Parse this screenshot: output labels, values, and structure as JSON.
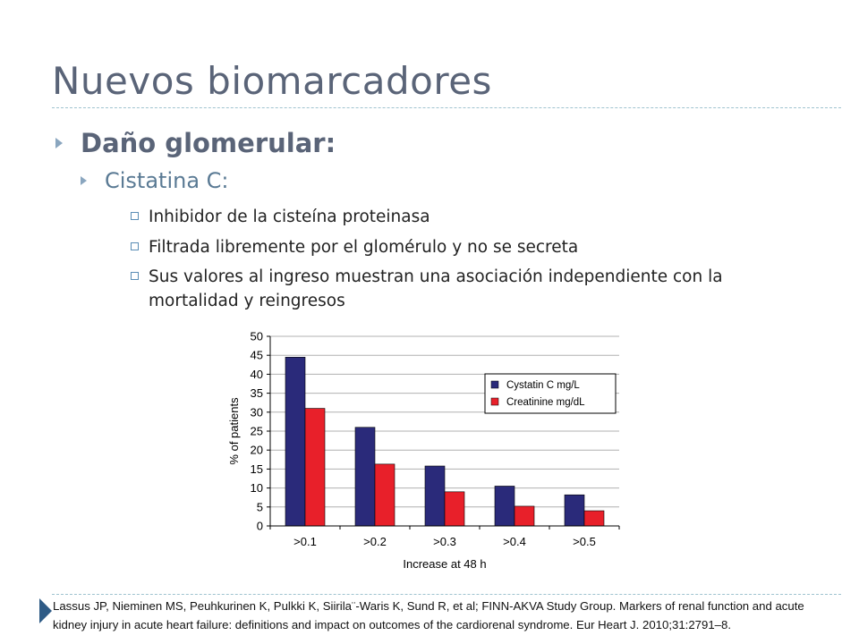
{
  "slide": {
    "title": "Nuevos biomarcadores",
    "level1": "Daño glomerular:",
    "level2": "Cistatina C:",
    "points": [
      "Inhibidor de la cisteína proteinasa",
      "Filtrada libremente por el glomérulo y no se secreta",
      "Sus valores al ingreso muestran una asociación independiente con la mortalidad y reingresos"
    ],
    "reference": "Lassus JP, Nieminen MS, Peuhkurinen K, Pulkki K, Siirila¨-Waris K, Sund R, et al; FINN-AKVA Study Group. Markers of renal function and acute kidney injury in acute heart failure: definitions and impact on outcomes of the cardiorenal syndrome. Eur Heart J. 2010;31:2791–8."
  },
  "colors": {
    "cystatin": "#2a2a7a",
    "creatinine": "#e8202a",
    "title": "#5a6478"
  },
  "chart_data": {
    "type": "bar",
    "categories": [
      ">0.1",
      ">0.2",
      ">0.3",
      ">0.4",
      ">0.5"
    ],
    "series": [
      {
        "name": "Cystatin C mg/L",
        "values": [
          44.5,
          26,
          15.8,
          10.5,
          8.2
        ]
      },
      {
        "name": "Creatinine mg/dL",
        "values": [
          31,
          16.3,
          9,
          5.2,
          4
        ]
      }
    ],
    "xlabel": "Increase at 48 h",
    "ylabel": "% of patients",
    "ylim": [
      0,
      50
    ],
    "yticks": [
      0,
      5,
      10,
      15,
      20,
      25,
      30,
      35,
      40,
      45,
      50
    ],
    "grid": true,
    "legend": "top-right"
  }
}
